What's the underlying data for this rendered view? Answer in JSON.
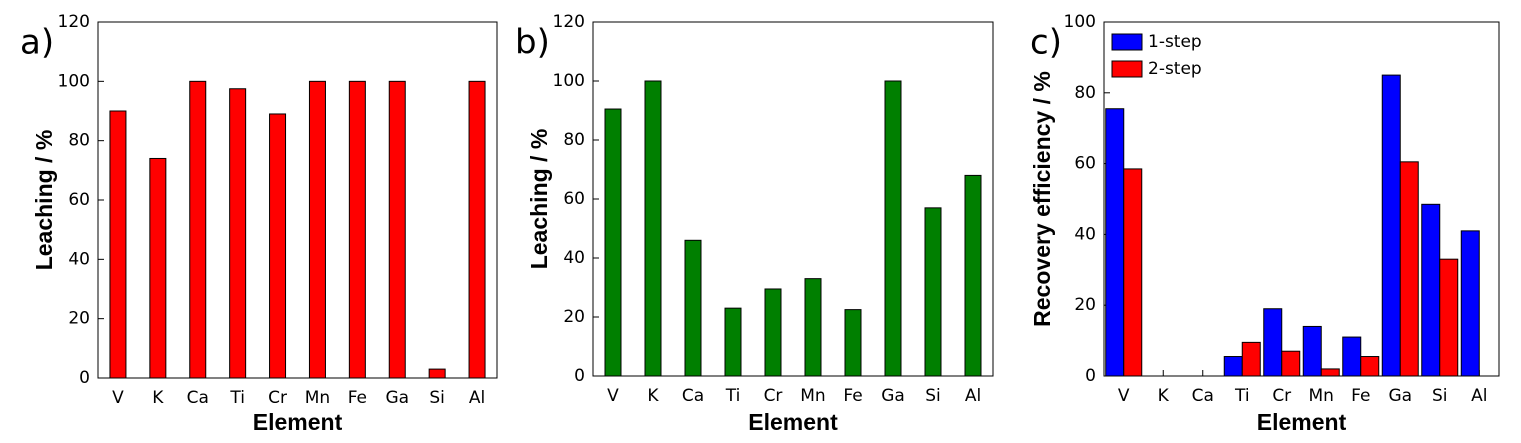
{
  "chart_data": [
    {
      "type": "bar",
      "panel_label": "a)",
      "x_label": "Element",
      "y_label": "Leaching / %",
      "categories": [
        "V",
        "K",
        "Ca",
        "Ti",
        "Cr",
        "Mn",
        "Fe",
        "Ga",
        "Si",
        "Al"
      ],
      "values": [
        90,
        74,
        100,
        97.5,
        89,
        100,
        100,
        100,
        3,
        100
      ],
      "color": "#ff0000",
      "ylim": [
        0,
        120
      ],
      "yticks": [
        0,
        20,
        40,
        60,
        80,
        100,
        120
      ]
    },
    {
      "type": "bar",
      "panel_label": "b)",
      "x_label": "Element",
      "y_label": "Leaching / %",
      "categories": [
        "V",
        "K",
        "Ca",
        "Ti",
        "Cr",
        "Mn",
        "Fe",
        "Ga",
        "Si",
        "Al"
      ],
      "values": [
        90.5,
        100,
        46,
        23,
        29.5,
        33,
        22.5,
        100,
        57,
        68
      ],
      "color": "#007f00",
      "ylim": [
        0,
        120
      ],
      "yticks": [
        0,
        20,
        40,
        60,
        80,
        100,
        120
      ]
    },
    {
      "type": "grouped_bar",
      "panel_label": "c)",
      "x_label": "Element",
      "y_label": "Recovery efficiency / %",
      "categories": [
        "V",
        "K",
        "Ca",
        "Ti",
        "Cr",
        "Mn",
        "Fe",
        "Ga",
        "Si",
        "Al"
      ],
      "series": [
        {
          "name": "1-step",
          "color": "#0000ff",
          "values": [
            75.5,
            0,
            0,
            5.5,
            19,
            14,
            11,
            85,
            48.5,
            41
          ]
        },
        {
          "name": "2-step",
          "color": "#ff0000",
          "values": [
            58.5,
            0,
            0,
            9.5,
            7,
            2,
            5.5,
            60.5,
            33,
            0
          ]
        }
      ],
      "ylim": [
        0,
        100
      ],
      "yticks": [
        0,
        20,
        40,
        60,
        80,
        100
      ],
      "legend": "upper left"
    }
  ]
}
